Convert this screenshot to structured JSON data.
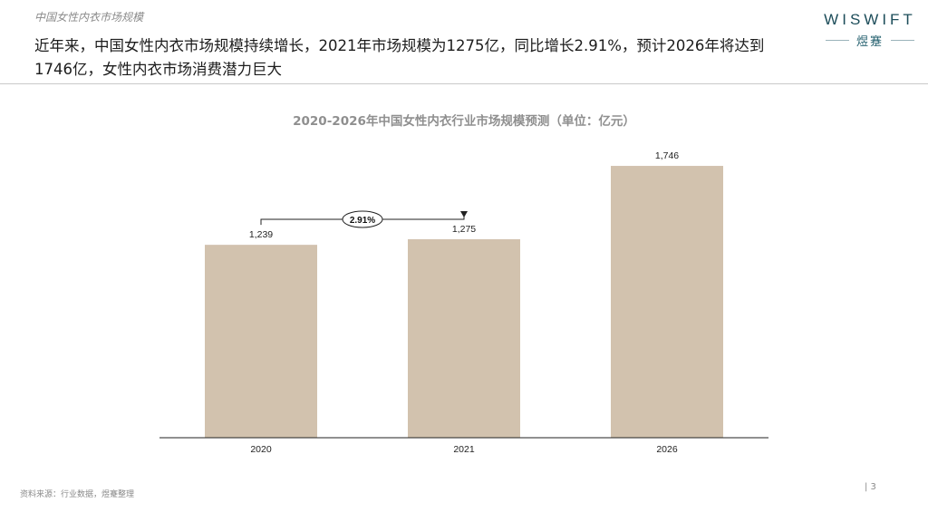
{
  "header": {
    "section_label": "中国女性内衣市场规模",
    "headline": "近年来，中国女性内衣市场规模持续增长，2021年市场规模为1275亿，同比增长2.91%，预计2026年将达到1746亿，女性内衣市场消费潜力巨大"
  },
  "brand": {
    "name_en": "WISWIFT",
    "name_cn": "煜蹇"
  },
  "chart_data": {
    "type": "bar",
    "title": "2020-2026年中国女性内衣行业市场规模预测（单位：亿元）",
    "categories": [
      "2020",
      "2021",
      "2026"
    ],
    "values": [
      1239,
      1275,
      1746
    ],
    "value_labels": [
      "1,239",
      "1,275",
      "1,746"
    ],
    "ylim": [
      0,
      1950
    ],
    "bar_color": "#d2c2ae",
    "annotation": {
      "label": "2.91%",
      "from": "2020",
      "to": "2021"
    }
  },
  "footer": {
    "source": "资料来源：行业数据，煜蹇整理",
    "page": "| 3"
  }
}
